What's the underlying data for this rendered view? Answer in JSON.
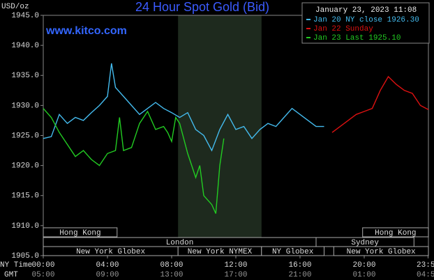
{
  "chart_data": {
    "type": "line",
    "title": "24 Hour Spot Gold (Bid)",
    "y_unit": "USD/oz",
    "timestamp": "January 23, 2023 11:08",
    "watermark": "www.kitco.com",
    "x_axis_label": "NY Time",
    "x2_axis_label": "GMT",
    "xlim": [
      0,
      24
    ],
    "ylim": [
      1905,
      1945
    ],
    "yticks": [
      {
        "value": 1905,
        "label": "1905.0"
      },
      {
        "value": 1910,
        "label": "1910.0"
      },
      {
        "value": 1915,
        "label": "1915.0"
      },
      {
        "value": 1920,
        "label": "1920.0"
      },
      {
        "value": 1925,
        "label": "1925.0"
      },
      {
        "value": 1930,
        "label": "1930.0"
      },
      {
        "value": 1935,
        "label": "1935.0"
      },
      {
        "value": 1940,
        "label": "1940.0"
      },
      {
        "value": 1945,
        "label": "1945.0"
      }
    ],
    "xticks": [
      {
        "value": 0,
        "label": "00:00"
      },
      {
        "value": 4,
        "label": "04:00"
      },
      {
        "value": 8,
        "label": "08:00"
      },
      {
        "value": 12,
        "label": "12:00"
      },
      {
        "value": 16,
        "label": "16:00"
      },
      {
        "value": 20,
        "label": "20:00"
      },
      {
        "value": 23.98,
        "label": "23:59"
      }
    ],
    "x2ticks": [
      {
        "value": 0,
        "label": "05:00"
      },
      {
        "value": 4,
        "label": "09:00"
      },
      {
        "value": 8,
        "label": "13:00"
      },
      {
        "value": 12,
        "label": "17:00"
      },
      {
        "value": 16,
        "label": "21:00"
      },
      {
        "value": 20,
        "label": "01:00"
      },
      {
        "value": 23.98,
        "label": "04:59"
      }
    ],
    "series": [
      {
        "name": "Jan 20 NY close 1926.30",
        "color": "#44bbee",
        "x": [
          0,
          0.5,
          1,
          1.5,
          2,
          2.5,
          3,
          3.5,
          4,
          4.25,
          4.5,
          5,
          5.5,
          6,
          6.5,
          7,
          7.5,
          8,
          8.5,
          9,
          9.5,
          10,
          10.5,
          11,
          11.5,
          12,
          12.5,
          13,
          13.5,
          14,
          14.5,
          15,
          15.5,
          16,
          16.5,
          17,
          17.5
        ],
        "values": [
          1924.5,
          1924.8,
          1928.5,
          1927,
          1928,
          1927.5,
          1928.8,
          1930,
          1931.5,
          1937,
          1933,
          1931.5,
          1930,
          1928.5,
          1929.5,
          1930.5,
          1929.5,
          1928.8,
          1928,
          1928.8,
          1926,
          1925,
          1922.5,
          1926,
          1928.5,
          1926,
          1926.5,
          1924.5,
          1926,
          1927,
          1926.5,
          1928,
          1929.5,
          1928.5,
          1927.5,
          1926.5,
          1926.5
        ]
      },
      {
        "name": "Jan 22 Sunday",
        "color": "#dd1111",
        "x": [
          18,
          18.5,
          19,
          19.5,
          20,
          20.5,
          21,
          21.5,
          22,
          22.5,
          23,
          23.5,
          24
        ],
        "values": [
          1925.5,
          1926.5,
          1927.5,
          1928.5,
          1929,
          1929.5,
          1932.5,
          1934.8,
          1933.5,
          1932.5,
          1932,
          1930,
          1929.3
        ]
      },
      {
        "name": "Jan 23 Last 1925.10",
        "color": "#22cc22",
        "x": [
          0,
          0.5,
          1,
          1.5,
          2,
          2.5,
          3,
          3.5,
          4,
          4.5,
          4.75,
          5,
          5.5,
          6,
          6.5,
          7,
          7.5,
          7.75,
          8,
          8.25,
          8.5,
          9,
          9.5,
          9.75,
          10,
          10.5,
          10.75,
          11,
          11.25
        ],
        "values": [
          1929.5,
          1928,
          1925.5,
          1923.5,
          1921.5,
          1922.5,
          1921,
          1920,
          1922,
          1922.5,
          1928,
          1922.5,
          1923,
          1927,
          1929,
          1926,
          1926.5,
          1925.5,
          1924,
          1928,
          1927,
          1922,
          1918,
          1920,
          1915,
          1913.5,
          1912,
          1920,
          1924.5
        ]
      }
    ],
    "sessions": [
      [
        {
          "name": "Hong Kong",
          "start": 0,
          "end": 4.6
        },
        {
          "name": "Hong Kong",
          "start": 19.9,
          "end": 24
        }
      ],
      [
        {
          "name": "London",
          "start": 0,
          "end": 17
        },
        {
          "name": "Sydney",
          "start": 17,
          "end": 23.1
        }
      ],
      [
        {
          "name": "New York Globex",
          "start": 0,
          "end": 8.4
        },
        {
          "name": "New York NYMEX",
          "start": 8.4,
          "end": 13.6
        },
        {
          "name": "NY Globex",
          "start": 13.6,
          "end": 17.5
        },
        {
          "name": "New York Globex",
          "start": 18.1,
          "end": 24
        }
      ]
    ]
  }
}
